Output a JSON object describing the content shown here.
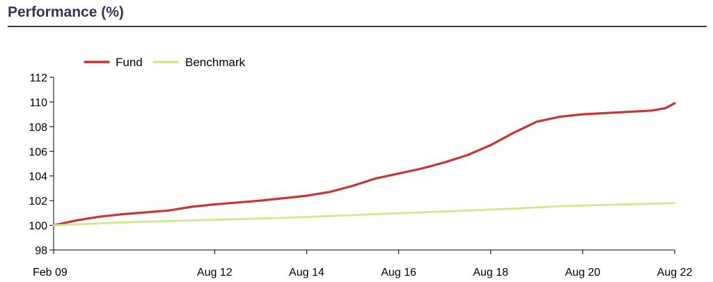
{
  "page": {
    "title": "Performance (%)",
    "rule_color": "#3d3157"
  },
  "chart_data": {
    "type": "line",
    "title": "",
    "xlabel": "",
    "ylabel": "",
    "ylim": [
      98,
      112
    ],
    "yticks": [
      98,
      100,
      102,
      104,
      106,
      108,
      110,
      112
    ],
    "xlim": [
      0,
      13.5
    ],
    "xticks": [
      {
        "label": "Feb 09",
        "x": 0
      },
      {
        "label": "Aug 12",
        "x": 3.5
      },
      {
        "label": "Aug 14",
        "x": 5.5
      },
      {
        "label": "Aug 16",
        "x": 7.5
      },
      {
        "label": "Aug 18",
        "x": 9.5
      },
      {
        "label": "Aug 20",
        "x": 11.5
      },
      {
        "label": "Aug 22",
        "x": 13.5
      }
    ],
    "grid": false,
    "legend": "top-left",
    "series": [
      {
        "name": "Fund",
        "color": "#cc3333",
        "x": [
          0,
          0.5,
          1.0,
          1.5,
          2.0,
          2.5,
          3.0,
          3.5,
          4.0,
          4.5,
          5.0,
          5.5,
          6.0,
          6.5,
          7.0,
          7.5,
          8.0,
          8.5,
          9.0,
          9.5,
          10.0,
          10.5,
          11.0,
          11.25,
          11.5,
          12.0,
          12.5,
          13.0,
          13.3,
          13.5
        ],
        "values": [
          100.0,
          100.4,
          100.7,
          100.9,
          101.05,
          101.2,
          101.5,
          101.7,
          101.85,
          102.0,
          102.2,
          102.4,
          102.7,
          103.2,
          103.8,
          104.2,
          104.6,
          105.1,
          105.7,
          106.5,
          107.5,
          108.4,
          108.8,
          108.9,
          109.0,
          109.1,
          109.2,
          109.3,
          109.5,
          109.9
        ]
      },
      {
        "name": "Benchmark",
        "color": "#d4e68a",
        "x": [
          0,
          1,
          2,
          3,
          4,
          5,
          6,
          7,
          8,
          9,
          10,
          11,
          12,
          13,
          13.5
        ],
        "values": [
          100.0,
          100.15,
          100.3,
          100.4,
          100.5,
          100.6,
          100.75,
          100.9,
          101.05,
          101.2,
          101.35,
          101.55,
          101.65,
          101.75,
          101.8
        ]
      }
    ]
  }
}
